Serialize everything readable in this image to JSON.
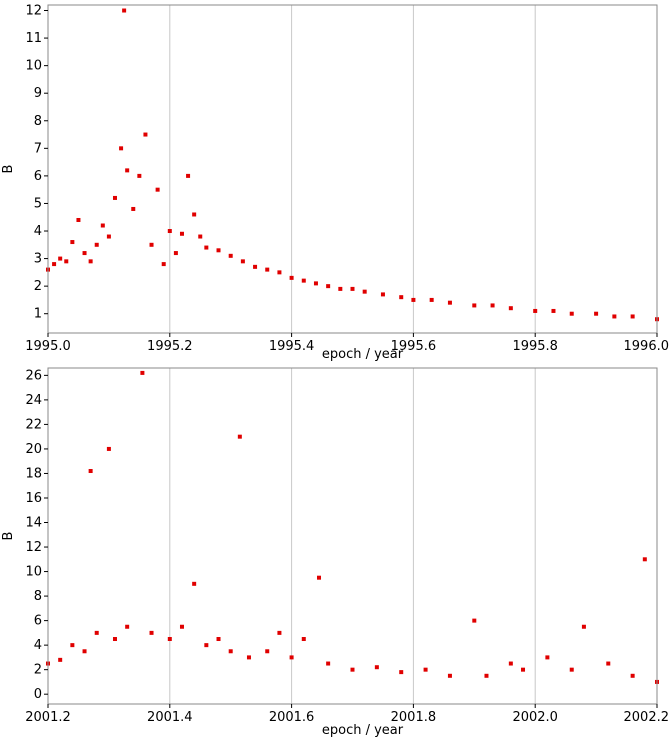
{
  "chart_data": [
    {
      "type": "scatter",
      "xlabel": "epoch / year",
      "ylabel": "B",
      "xlim": [
        1995.0,
        1996.0
      ],
      "ylim": [
        0.3,
        12.2
      ],
      "xticks": [
        1995.0,
        1995.2,
        1995.4,
        1995.6,
        1995.8,
        1996.0
      ],
      "xtick_labels": [
        "1995.0",
        "1995.2",
        "1995.4",
        "1995.6",
        "1995.8",
        "1996.0"
      ],
      "yticks": [
        1,
        2,
        3,
        4,
        5,
        6,
        7,
        8,
        9,
        10,
        11,
        12
      ],
      "ytick_labels": [
        "1",
        "2",
        "3",
        "4",
        "5",
        "6",
        "7",
        "8",
        "9",
        "10",
        "11",
        "12"
      ],
      "grid": true,
      "marker_color": "#e00000",
      "x": [
        1995.0,
        1995.01,
        1995.02,
        1995.03,
        1995.04,
        1995.05,
        1995.06,
        1995.07,
        1995.08,
        1995.09,
        1995.1,
        1995.11,
        1995.12,
        1995.125,
        1995.13,
        1995.14,
        1995.15,
        1995.16,
        1995.17,
        1995.18,
        1995.19,
        1995.2,
        1995.21,
        1995.22,
        1995.23,
        1995.24,
        1995.25,
        1995.26,
        1995.28,
        1995.3,
        1995.32,
        1995.34,
        1995.36,
        1995.38,
        1995.4,
        1995.42,
        1995.44,
        1995.46,
        1995.48,
        1995.5,
        1995.52,
        1995.55,
        1995.58,
        1995.6,
        1995.63,
        1995.66,
        1995.7,
        1995.73,
        1995.76,
        1995.8,
        1995.83,
        1995.86,
        1995.9,
        1995.93,
        1995.96,
        1996.0
      ],
      "y": [
        2.6,
        2.8,
        3.0,
        2.9,
        3.6,
        4.4,
        3.2,
        2.9,
        3.5,
        4.2,
        3.8,
        5.2,
        7.0,
        12.0,
        6.2,
        4.8,
        6.0,
        7.5,
        3.5,
        5.5,
        2.8,
        4.0,
        3.2,
        3.9,
        6.0,
        4.6,
        3.8,
        3.4,
        3.3,
        3.1,
        2.9,
        2.7,
        2.6,
        2.5,
        2.3,
        2.2,
        2.1,
        2.0,
        1.9,
        1.9,
        1.8,
        1.7,
        1.6,
        1.5,
        1.5,
        1.4,
        1.3,
        1.3,
        1.2,
        1.1,
        1.1,
        1.0,
        1.0,
        0.9,
        0.9,
        0.8
      ]
    },
    {
      "type": "scatter",
      "xlabel": "epoch / year",
      "ylabel": "B",
      "xlim": [
        2001.2,
        2002.2
      ],
      "ylim": [
        -0.8,
        26.6
      ],
      "xticks": [
        2001.2,
        2001.4,
        2001.6,
        2001.8,
        2002.0,
        2002.2
      ],
      "xtick_labels": [
        "2001.2",
        "2001.4",
        "2001.6",
        "2001.8",
        "2002.0",
        "2002.2"
      ],
      "yticks": [
        0,
        2,
        4,
        6,
        8,
        10,
        12,
        14,
        16,
        18,
        20,
        22,
        24,
        26
      ],
      "ytick_labels": [
        "0",
        "2",
        "4",
        "6",
        "8",
        "10",
        "12",
        "14",
        "16",
        "18",
        "20",
        "22",
        "24",
        "26"
      ],
      "grid": true,
      "marker_color": "#e00000",
      "x": [
        2001.2,
        2001.22,
        2001.24,
        2001.26,
        2001.27,
        2001.28,
        2001.3,
        2001.31,
        2001.33,
        2001.355,
        2001.37,
        2001.4,
        2001.42,
        2001.44,
        2001.46,
        2001.48,
        2001.5,
        2001.515,
        2001.53,
        2001.56,
        2001.58,
        2001.6,
        2001.62,
        2001.645,
        2001.66,
        2001.7,
        2001.74,
        2001.78,
        2001.82,
        2001.86,
        2001.9,
        2001.92,
        2001.96,
        2001.98,
        2002.02,
        2002.06,
        2002.08,
        2002.12,
        2002.16,
        2002.18,
        2002.2
      ],
      "y": [
        2.5,
        2.8,
        4.0,
        3.5,
        18.2,
        5.0,
        20.0,
        4.5,
        5.5,
        26.2,
        5.0,
        4.5,
        5.5,
        9.0,
        4.0,
        4.5,
        3.5,
        21.0,
        3.0,
        3.5,
        5.0,
        3.0,
        4.5,
        9.5,
        2.5,
        2.0,
        2.2,
        1.8,
        2.0,
        1.5,
        6.0,
        1.5,
        2.5,
        2.0,
        3.0,
        2.0,
        5.5,
        2.5,
        1.5,
        11.0,
        1.0
      ]
    }
  ]
}
